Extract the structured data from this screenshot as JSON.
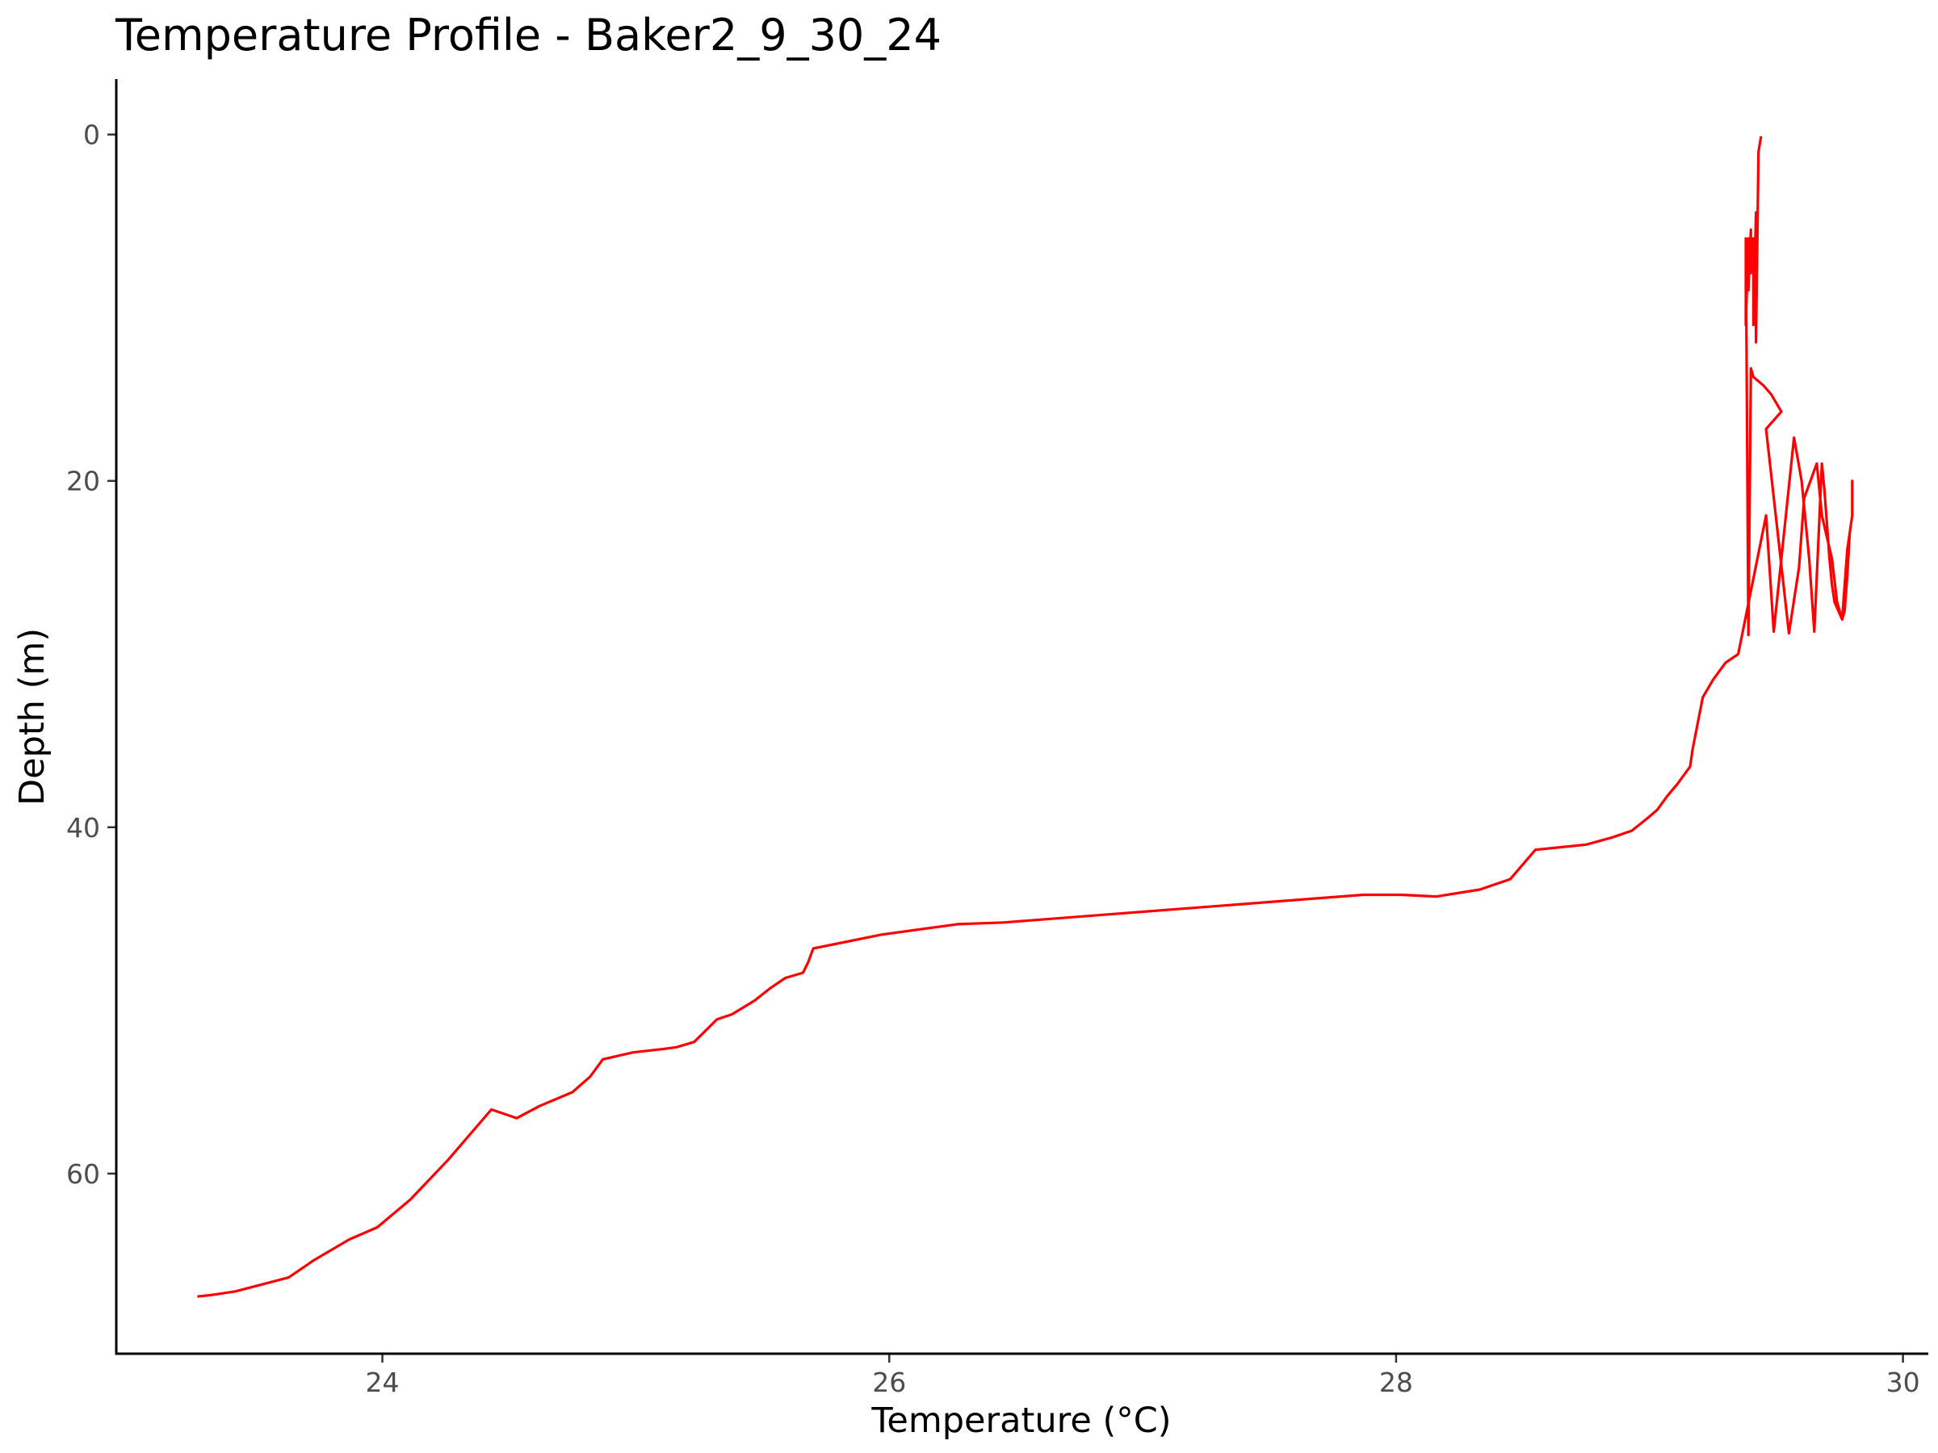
{
  "chart_data": {
    "type": "line",
    "title": "Temperature Profile - Baker2_9_30_24",
    "xlabel": "Temperature (°C)",
    "ylabel": "Depth (m)",
    "xlim": [
      22.95,
      30.1
    ],
    "ylim": [
      -3.2,
      70.4
    ],
    "y_reversed": true,
    "grid": false,
    "legend": "none",
    "line_color": "#ff0000",
    "x_ticks": [
      24,
      26,
      28,
      30
    ],
    "x_tick_labels": [
      "24",
      "26",
      "28",
      "30"
    ],
    "y_ticks": [
      0,
      20,
      40,
      60
    ],
    "y_tick_labels": [
      "0",
      "20",
      "40",
      "60"
    ],
    "series": [
      {
        "x": [
          29.44,
          29.43,
          29.42,
          29.42,
          29.41,
          29.41,
          29.4,
          29.4,
          29.39,
          29.39,
          29.38,
          29.38,
          29.39,
          29.4,
          29.41,
          29.45,
          29.48,
          29.52,
          29.46,
          29.55,
          29.59,
          29.61,
          29.66,
          29.68,
          29.72,
          29.74,
          29.76,
          29.78,
          29.8,
          29.8,
          29.8,
          29.79,
          29.78,
          29.77,
          29.76,
          29.73,
          29.72,
          29.71,
          29.7,
          29.69,
          29.68,
          29.65,
          29.63,
          29.6,
          29.57,
          29.49,
          29.46,
          29.35,
          29.3,
          29.25,
          29.21,
          29.19,
          29.17,
          29.16,
          29.11,
          29.07,
          29.03,
          28.99,
          28.93,
          28.85,
          28.75,
          28.55,
          28.45,
          28.33,
          28.16,
          28.02,
          27.87,
          26.45,
          26.27,
          25.97,
          25.7,
          25.68,
          25.66,
          25.59,
          25.53,
          25.47,
          25.38,
          25.32,
          25.23,
          25.16,
          25.11,
          24.99,
          24.87,
          24.82,
          24.75,
          24.62,
          24.53,
          24.43,
          24.26,
          24.11,
          23.98,
          23.87,
          23.73,
          23.63,
          23.42,
          23.33,
          23.27
        ],
        "y": [
          0.1,
          1.0,
          12.0,
          4.5,
          11.0,
          6.0,
          8.0,
          5.5,
          9.0,
          6.0,
          11.0,
          6.0,
          28.9,
          13.5,
          14.0,
          14.5,
          15.0,
          16.0,
          17.0,
          28.8,
          25.0,
          21.0,
          19.0,
          22.0,
          24.5,
          27.0,
          28.0,
          24.0,
          22.0,
          20.0,
          22.0,
          23.0,
          25.5,
          27.5,
          28.0,
          27.0,
          26.0,
          24.5,
          22.5,
          20.5,
          19.0,
          28.7,
          24.5,
          20.0,
          17.5,
          28.7,
          22.0,
          30.0,
          30.5,
          31.5,
          32.5,
          34.0,
          35.5,
          36.5,
          37.5,
          38.2,
          39.0,
          39.5,
          40.2,
          40.6,
          41.0,
          41.3,
          43.0,
          43.6,
          44.0,
          43.9,
          43.9,
          45.5,
          45.6,
          46.2,
          47.0,
          47.8,
          48.4,
          48.7,
          49.3,
          50.0,
          50.8,
          51.1,
          52.4,
          52.7,
          52.8,
          53.0,
          53.4,
          54.4,
          55.3,
          56.1,
          56.8,
          56.3,
          59.2,
          61.5,
          63.1,
          63.8,
          65.0,
          66.0,
          66.8,
          67.0,
          67.1
        ]
      }
    ]
  }
}
